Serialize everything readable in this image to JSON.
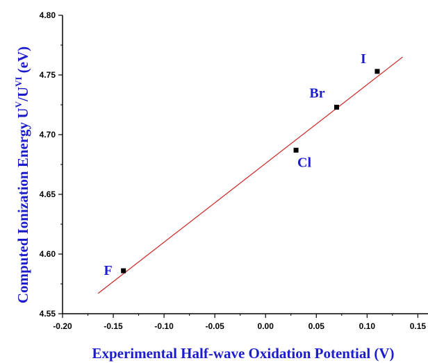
{
  "chart_data": {
    "type": "scatter",
    "title": "",
    "xlabel": "Experimental Half-wave Oxidation Potential (V)",
    "ylabel": {
      "base": "Computed Ionization Energy U",
      "sup1": "V",
      "mid": "/U",
      "sup2": "VI",
      "unit": " (eV)"
    },
    "xlim": [
      -0.2,
      0.16
    ],
    "ylim": [
      4.55,
      4.8
    ],
    "grid": false,
    "x_ticks": [
      -0.2,
      -0.15,
      -0.1,
      -0.05,
      0.0,
      0.05,
      0.1,
      0.15
    ],
    "x_tick_labels": [
      "-0.20",
      "-0.15",
      "-0.10",
      "-0.05",
      "0.00",
      "0.05",
      "0.10",
      "0.15"
    ],
    "y_ticks": [
      4.55,
      4.6,
      4.65,
      4.7,
      4.75,
      4.8
    ],
    "y_tick_labels": [
      "4.55",
      "4.60",
      "4.65",
      "4.70",
      "4.75",
      "4.80"
    ],
    "points": [
      {
        "label": "F",
        "x": -0.14,
        "y": 4.586
      },
      {
        "label": "Cl",
        "x": 0.03,
        "y": 4.687
      },
      {
        "label": "Br",
        "x": 0.07,
        "y": 4.723
      },
      {
        "label": "I",
        "x": 0.11,
        "y": 4.753
      }
    ],
    "fit_line": {
      "x": [
        -0.165,
        0.135
      ],
      "y": [
        4.567,
        4.765
      ]
    },
    "colors": {
      "points": "#000000",
      "fit_line": "#cc2222",
      "labels": "#1c1ccc"
    }
  }
}
